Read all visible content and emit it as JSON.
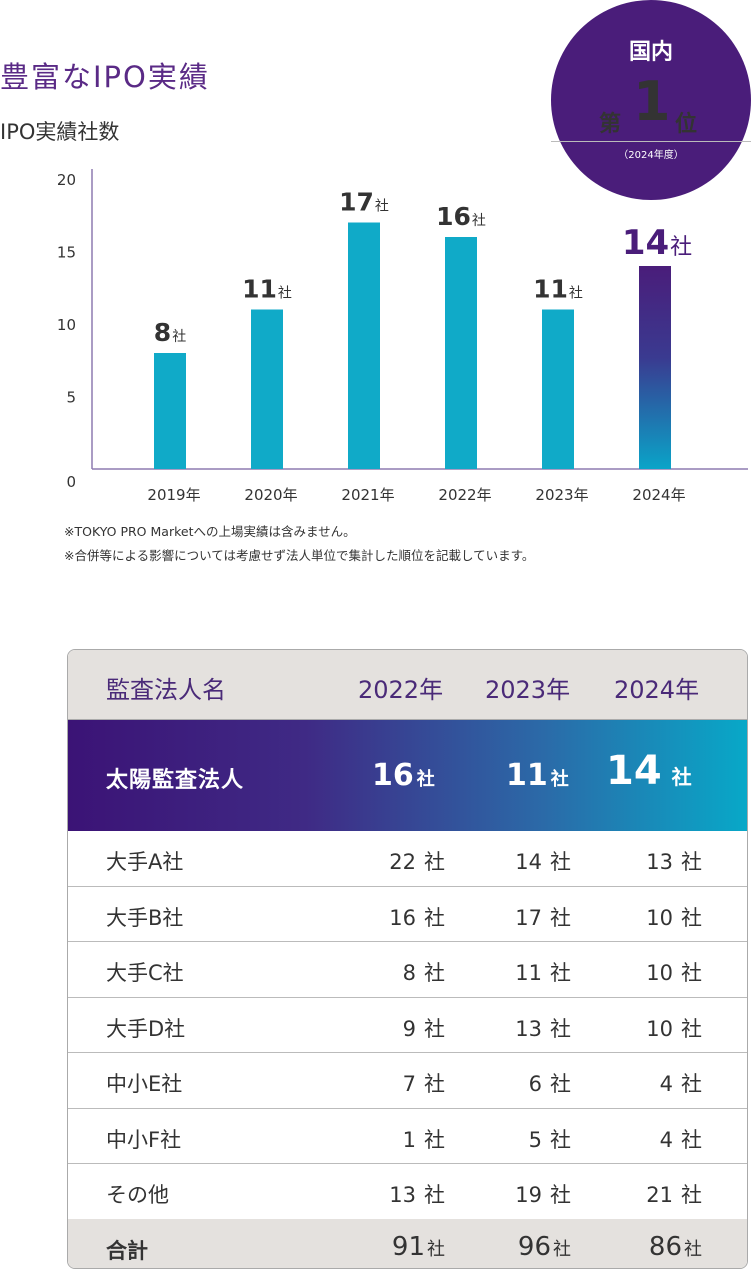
{
  "title": "豊富なIPO実績",
  "subtitle": "IPO実績社数",
  "badge": {
    "line1": "国内",
    "line2a": "第",
    "line2b": "1",
    "line2c": "位",
    "line3": "（2024年度）"
  },
  "colors": {
    "bar": "#10aac8",
    "highlight_top": "#4a1d7a",
    "highlight_bottom": "#0aa4c8",
    "axis": "#8e7bb0",
    "brand": "#4a1d7a"
  },
  "chart_data": {
    "type": "bar",
    "title": "IPO実績社数",
    "categories": [
      "2019年",
      "2020年",
      "2021年",
      "2022年",
      "2023年",
      "2024年"
    ],
    "values": [
      8,
      11,
      17,
      16,
      11,
      14
    ],
    "value_unit": "社",
    "highlight_index": 5,
    "ylim": [
      0,
      20
    ],
    "yticks": [
      0,
      5,
      10,
      15,
      20
    ],
    "grid": false,
    "legend": "none"
  },
  "notes": [
    "※TOKYO PRO Marketへの上場実績は含みません。",
    "※合併等による影響については考慮せず法人単位で集計した順位を記載しています。"
  ],
  "table": {
    "headers": [
      "監査法人名",
      "2022年",
      "2023年",
      "2024年"
    ],
    "unit": "社",
    "highlight": {
      "name": "太陽監査法人",
      "values": [
        "16",
        "11",
        "14"
      ]
    },
    "rows": [
      {
        "name": "大手A社",
        "values": [
          "22",
          "14",
          "13"
        ]
      },
      {
        "name": "大手B社",
        "values": [
          "16",
          "17",
          "10"
        ]
      },
      {
        "name": "大手C社",
        "values": [
          "8",
          "11",
          "10"
        ]
      },
      {
        "name": "大手D社",
        "values": [
          "9",
          "13",
          "10"
        ]
      },
      {
        "name": "中小E社",
        "values": [
          "7",
          "6",
          "4"
        ]
      },
      {
        "name": "中小F社",
        "values": [
          "1",
          "5",
          "4"
        ]
      },
      {
        "name": "その他",
        "values": [
          "13",
          "19",
          "21"
        ]
      }
    ],
    "total": {
      "name": "合計",
      "values": [
        "91",
        "96",
        "86"
      ]
    }
  }
}
